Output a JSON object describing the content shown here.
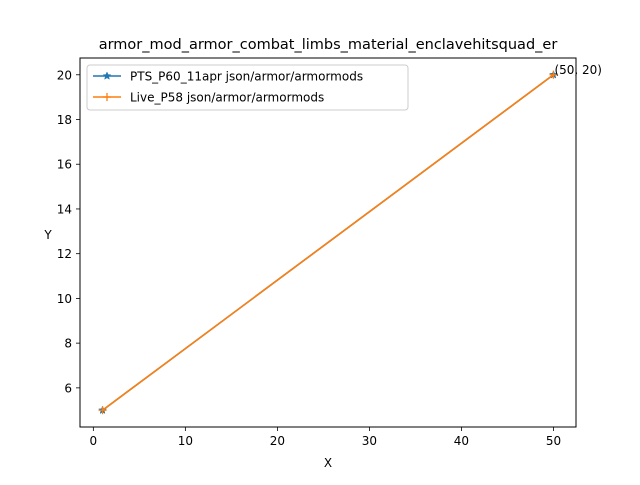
{
  "chart_data": {
    "type": "line",
    "title": "armor_mod_armor_combat_limbs_material_enclavehitsquad_er",
    "xlabel": "X",
    "ylabel": "Y",
    "xlim": [
      -1.45,
      52.45
    ],
    "ylim": [
      4.25,
      20.75
    ],
    "xticks": [
      0,
      10,
      20,
      30,
      40,
      50
    ],
    "yticks": [
      6,
      8,
      10,
      12,
      14,
      16,
      18,
      20
    ],
    "grid": false,
    "legend_position": "upper-left",
    "series": [
      {
        "name": "PTS_P60_11apr json/armor/armormods",
        "color": "#1f77b4",
        "marker": "star",
        "x": [
          1,
          50
        ],
        "y": [
          5,
          20
        ]
      },
      {
        "name": "Live_P58 json/armor/armormods",
        "color": "#ff7f0e",
        "marker": "plus",
        "x": [
          1,
          50
        ],
        "y": [
          5,
          20
        ]
      }
    ],
    "annotations": [
      {
        "text": "(50, 20)",
        "x": 50,
        "y": 20
      }
    ]
  }
}
